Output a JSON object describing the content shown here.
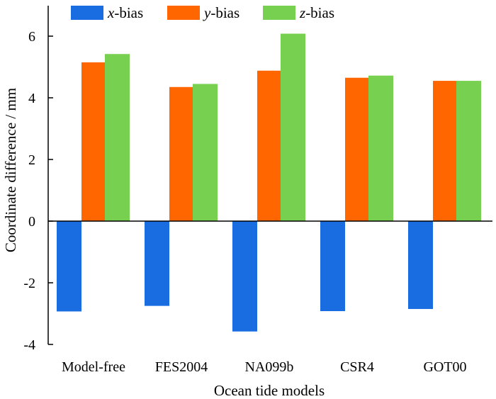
{
  "chart_data": {
    "type": "bar",
    "title": "",
    "xlabel": "Ocean tide models",
    "ylabel": "Coordinate difference / mm",
    "ylim": [
      -4,
      7
    ],
    "yticks": [
      -4,
      -2,
      0,
      2,
      4,
      6
    ],
    "ytick_labels": [
      "-4",
      "-2",
      "0",
      "2",
      "4",
      "6"
    ],
    "grid": false,
    "legend_position": "top",
    "categories": [
      "Model-free",
      "FES2004",
      "NA099b",
      "CSR4",
      "GOT00"
    ],
    "series": [
      {
        "name": "x-bias",
        "var": "x",
        "suffix": "-bias",
        "color": "#1a6de0",
        "values": [
          -2.93,
          -2.75,
          -3.58,
          -2.92,
          -2.85
        ]
      },
      {
        "name": "y-bias",
        "var": "y",
        "suffix": "-bias",
        "color": "#ff6600",
        "values": [
          5.15,
          4.35,
          4.88,
          4.65,
          4.55
        ]
      },
      {
        "name": "z-bias",
        "var": "z",
        "suffix": "-bias",
        "color": "#78d050",
        "values": [
          5.42,
          4.45,
          6.08,
          4.72,
          4.55
        ]
      }
    ]
  }
}
